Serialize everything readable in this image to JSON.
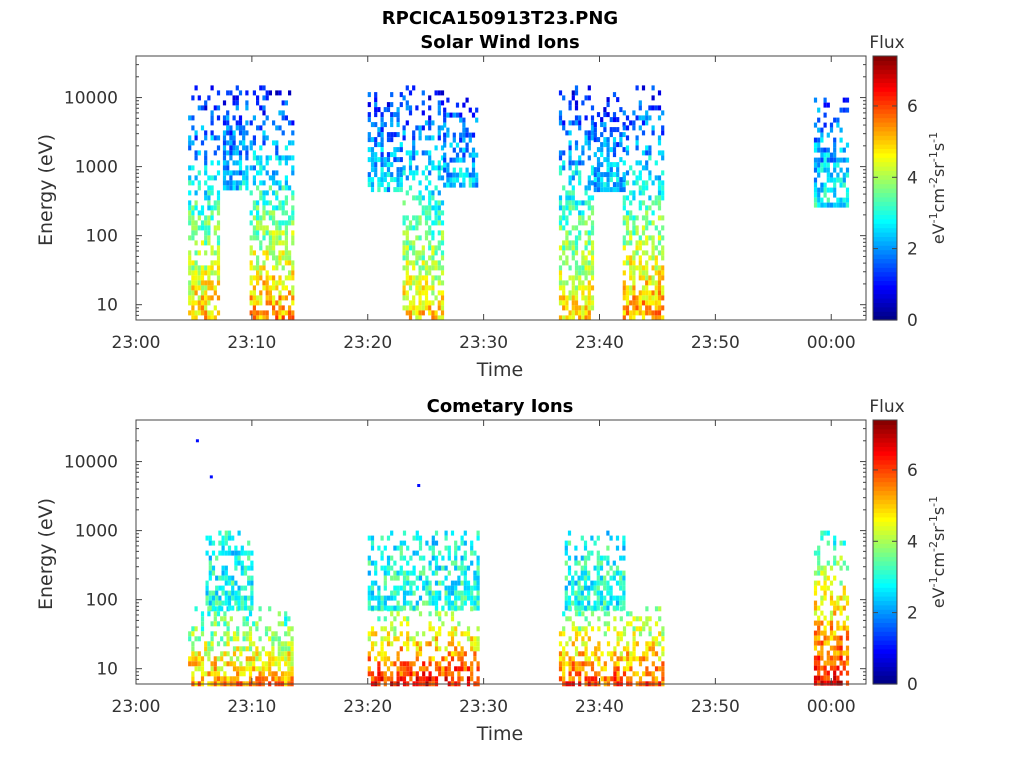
{
  "figure_title": "RPCICA150913T23.PNG",
  "chart_data": [
    {
      "type": "heatmap",
      "title": "Solar Wind Ions",
      "xlabel": "Time",
      "ylabel": "Energy (eV)",
      "x_ticks": [
        "23:00",
        "23:10",
        "23:20",
        "23:30",
        "23:40",
        "23:50",
        "00:00"
      ],
      "xlim": [
        "23:00",
        "00:03"
      ],
      "y_scale": "log",
      "y_ticks": [
        "10",
        "10000",
        "1000",
        "100"
      ],
      "y_tick_values": [
        10,
        10000,
        1000,
        100
      ],
      "ylim": [
        6,
        40000
      ],
      "colorbar": {
        "label": "eV-1cm-2sr-1s-1",
        "sup": [
          "-1",
          "-2",
          "-1",
          "-1"
        ],
        "parts": [
          "eV",
          "cm",
          "sr",
          "s"
        ],
        "title": "Flux",
        "ticks": [
          "0",
          "2",
          "4",
          "6"
        ],
        "range": [
          0,
          7.4
        ]
      },
      "bursts": [
        {
          "t_start": "23:04.5",
          "t_end": "23:07.0",
          "e_min": 6,
          "e_max": 15000,
          "flux_low_e": 5.2,
          "flux_high_e": 1.0
        },
        {
          "t_start": "23:07.5",
          "t_end": "23:09.5",
          "e_min": 500,
          "e_max": 15000,
          "flux_low_e": 2.5,
          "flux_high_e": 1.2
        },
        {
          "t_start": "23:09.8",
          "t_end": "23:13.5",
          "e_min": 6,
          "e_max": 15000,
          "flux_low_e": 5.5,
          "flux_high_e": 1.0
        },
        {
          "t_start": "23:20.0",
          "t_end": "23:23.0",
          "e_min": 500,
          "e_max": 12000,
          "flux_low_e": 2.5,
          "flux_high_e": 1.3
        },
        {
          "t_start": "23:23.0",
          "t_end": "23:26.5",
          "e_min": 6,
          "e_max": 15000,
          "flux_low_e": 5.0,
          "flux_high_e": 1.0
        },
        {
          "t_start": "23:26.5",
          "t_end": "23:29.5",
          "e_min": 500,
          "e_max": 10000,
          "flux_low_e": 2.5,
          "flux_high_e": 1.3
        },
        {
          "t_start": "23:36.5",
          "t_end": "23:39.5",
          "e_min": 6,
          "e_max": 15000,
          "flux_low_e": 5.0,
          "flux_high_e": 1.0
        },
        {
          "t_start": "23:39.5",
          "t_end": "23:42.0",
          "e_min": 500,
          "e_max": 12000,
          "flux_low_e": 2.5,
          "flux_high_e": 1.2
        },
        {
          "t_start": "23:42.0",
          "t_end": "23:45.5",
          "e_min": 6,
          "e_max": 15000,
          "flux_low_e": 5.5,
          "flux_high_e": 1.0
        },
        {
          "t_start": "23:58.5",
          "t_end": "00:01.5",
          "e_min": 300,
          "e_max": 10000,
          "flux_low_e": 2.8,
          "flux_high_e": 1.5
        }
      ]
    },
    {
      "type": "heatmap",
      "title": "Cometary Ions",
      "xlabel": "Time",
      "ylabel": "Energy (eV)",
      "x_ticks": [
        "23:00",
        "23:10",
        "23:20",
        "23:30",
        "23:40",
        "23:50",
        "00:00"
      ],
      "xlim": [
        "23:00",
        "00:03"
      ],
      "y_scale": "log",
      "y_ticks": [
        "10",
        "10000",
        "1000",
        "100"
      ],
      "y_tick_values": [
        10,
        10000,
        1000,
        100
      ],
      "ylim": [
        6,
        40000
      ],
      "colorbar": {
        "label": "eV-1cm-2sr-1s-1",
        "sup": [
          "-1",
          "-2",
          "-1",
          "-1"
        ],
        "parts": [
          "eV",
          "cm",
          "sr",
          "s"
        ],
        "title": "Flux",
        "ticks": [
          "0",
          "2",
          "4",
          "6"
        ],
        "range": [
          0,
          7.4
        ]
      },
      "bursts": [
        {
          "t_start": "23:04.5",
          "t_end": "23:13.5",
          "e_min": 6,
          "e_max": 80,
          "flux_low_e": 5.5,
          "flux_high_e": 3.0
        },
        {
          "t_start": "23:06.0",
          "t_end": "23:10.0",
          "e_min": 80,
          "e_max": 1000,
          "flux_low_e": 3.0,
          "flux_high_e": 2.8
        },
        {
          "t_start": "23:20.0",
          "t_end": "23:29.5",
          "e_min": 6,
          "e_max": 80,
          "flux_low_e": 6.5,
          "flux_high_e": 3.5
        },
        {
          "t_start": "23:20.0",
          "t_end": "23:29.5",
          "e_min": 80,
          "e_max": 1000,
          "flux_low_e": 3.0,
          "flux_high_e": 2.8
        },
        {
          "t_start": "23:36.5",
          "t_end": "23:45.5",
          "e_min": 6,
          "e_max": 80,
          "flux_low_e": 6.0,
          "flux_high_e": 3.5
        },
        {
          "t_start": "23:37.0",
          "t_end": "23:42.0",
          "e_min": 80,
          "e_max": 1000,
          "flux_low_e": 3.0,
          "flux_high_e": 2.8
        },
        {
          "t_start": "23:58.5",
          "t_end": "00:01.5",
          "e_min": 6,
          "e_max": 1000,
          "flux_low_e": 6.5,
          "flux_high_e": 3.0
        }
      ],
      "isolated_points": [
        {
          "t": "23:05.3",
          "energy": 20000,
          "flux": 1.0
        },
        {
          "t": "23:06.5",
          "energy": 6000,
          "flux": 1.0
        },
        {
          "t": "23:24.4",
          "energy": 4500,
          "flux": 1.0
        }
      ]
    }
  ]
}
